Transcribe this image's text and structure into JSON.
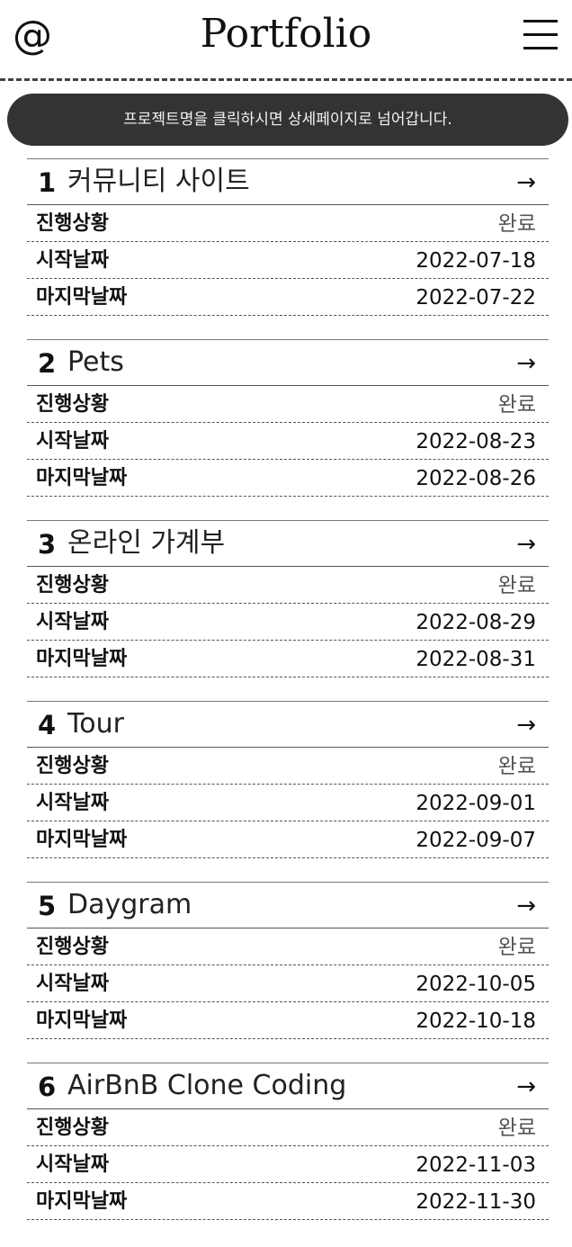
{
  "header": {
    "at_symbol": "@",
    "title": "Portfolio",
    "menu_icon": "hamburger-menu-icon"
  },
  "notice": "프로젝트명을 클릭하시면 상세페이지로 넘어갑니다.",
  "labels": {
    "status": "진행상황",
    "start": "시작날짜",
    "end": "마지막날짜"
  },
  "arrow_icon": "→",
  "projects": [
    {
      "num": "1",
      "name": "커뮤니티 사이트",
      "status": "완료",
      "start": "2022-07-18",
      "end": "2022-07-22"
    },
    {
      "num": "2",
      "name": "Pets",
      "status": "완료",
      "start": "2022-08-23",
      "end": "2022-08-26"
    },
    {
      "num": "3",
      "name": "온라인 가계부",
      "status": "완료",
      "start": "2022-08-29",
      "end": "2022-08-31"
    },
    {
      "num": "4",
      "name": "Tour",
      "status": "완료",
      "start": "2022-09-01",
      "end": "2022-09-07"
    },
    {
      "num": "5",
      "name": "Daygram",
      "status": "완료",
      "start": "2022-10-05",
      "end": "2022-10-18"
    },
    {
      "num": "6",
      "name": "AirBnB Clone Coding",
      "status": "완료",
      "start": "2022-11-03",
      "end": "2022-11-30"
    }
  ]
}
